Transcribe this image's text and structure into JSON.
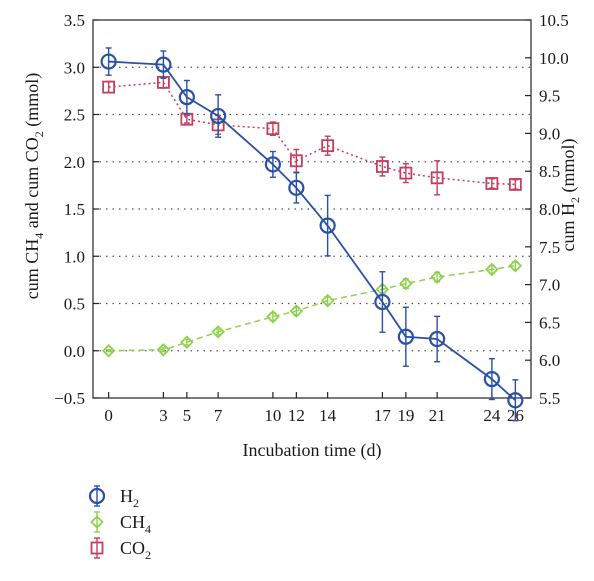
{
  "chart_data": {
    "type": "line",
    "xlabel": "Incubation time (d)",
    "ylabel_left": {
      "base": "cum CH",
      "sub1": "4",
      "mid": " and cum CO",
      "sub2": "2",
      "tail": " (mmol)"
    },
    "ylabel_right": {
      "base": "cum H",
      "sub": "2",
      "tail": " (mmol)"
    },
    "x_ticks": [
      {
        "x": 0,
        "label": "0"
      },
      {
        "x": 3.5,
        "label": "3"
      },
      {
        "x": 5,
        "label": "5"
      },
      {
        "x": 7,
        "label": "7"
      },
      {
        "x": 10.5,
        "label": "10"
      },
      {
        "x": 12,
        "label": "12"
      },
      {
        "x": 14,
        "label": "14"
      },
      {
        "x": 17.5,
        "label": "17"
      },
      {
        "x": 19,
        "label": "19"
      },
      {
        "x": 21,
        "label": "21"
      },
      {
        "x": 24.5,
        "label": "24"
      },
      {
        "x": 26,
        "label": "26"
      }
    ],
    "xlim": [
      -1,
      27
    ],
    "ylim_left": [
      -0.5,
      3.5
    ],
    "ylim_right": [
      5.5,
      10.5
    ],
    "y_ticks_left": [
      "3.5",
      "3.0",
      "2.5",
      "2.0",
      "1.5",
      "1.0",
      "0.5",
      "0.0",
      "−0.5"
    ],
    "y_ticks_right": [
      "10.5",
      "10.0",
      "9.5",
      "9.0",
      "8.5",
      "8.0",
      "7.5",
      "7.0",
      "6.5",
      "6.0",
      "5.5"
    ],
    "grid": "horizontal-dotted",
    "legend_position": "bottom-left",
    "series": [
      {
        "name": "H",
        "name_sub": "2",
        "axis": "right",
        "color": "#2a4fa6",
        "marker": "circle",
        "line": "solid",
        "x": [
          0,
          3.5,
          5,
          7,
          10.5,
          12,
          14,
          17.5,
          19,
          21,
          24.5,
          26
        ],
        "y": [
          9.95,
          9.91,
          9.48,
          9.23,
          8.59,
          8.28,
          7.78,
          6.77,
          6.31,
          6.28,
          5.75,
          5.47
        ],
        "err": [
          0.18,
          0.18,
          0.22,
          0.28,
          0.17,
          0.2,
          0.4,
          0.4,
          0.39,
          0.3,
          0.27,
          0.27
        ]
      },
      {
        "name": "CH",
        "name_sub": "4",
        "axis": "left",
        "color": "#8fd14f",
        "marker": "diamond",
        "line": "dashed",
        "x": [
          0,
          3.5,
          5,
          7,
          10.5,
          12,
          14,
          17.5,
          19,
          21,
          24.5,
          26
        ],
        "y": [
          0.0,
          0.01,
          0.09,
          0.2,
          0.36,
          0.42,
          0.53,
          0.65,
          0.71,
          0.78,
          0.86,
          0.9
        ],
        "err": [
          0.01,
          0.02,
          0.03,
          0.03,
          0.04,
          0.04,
          0.04,
          0.04,
          0.05,
          0.05,
          0.04,
          0.04
        ]
      },
      {
        "name": "CO",
        "name_sub": "2",
        "axis": "left",
        "color": "#c23f5e",
        "marker": "square",
        "line": "dotted",
        "x": [
          0,
          3.5,
          5,
          7,
          10.5,
          12,
          14,
          17.5,
          19,
          21,
          24.5,
          26
        ],
        "y": [
          2.79,
          2.84,
          2.45,
          2.39,
          2.35,
          2.01,
          2.17,
          1.95,
          1.88,
          1.83,
          1.77,
          1.76
        ],
        "err": [
          0.06,
          0.06,
          0.04,
          0.1,
          0.07,
          0.12,
          0.1,
          0.1,
          0.1,
          0.18,
          0.05,
          0.05
        ]
      }
    ]
  }
}
